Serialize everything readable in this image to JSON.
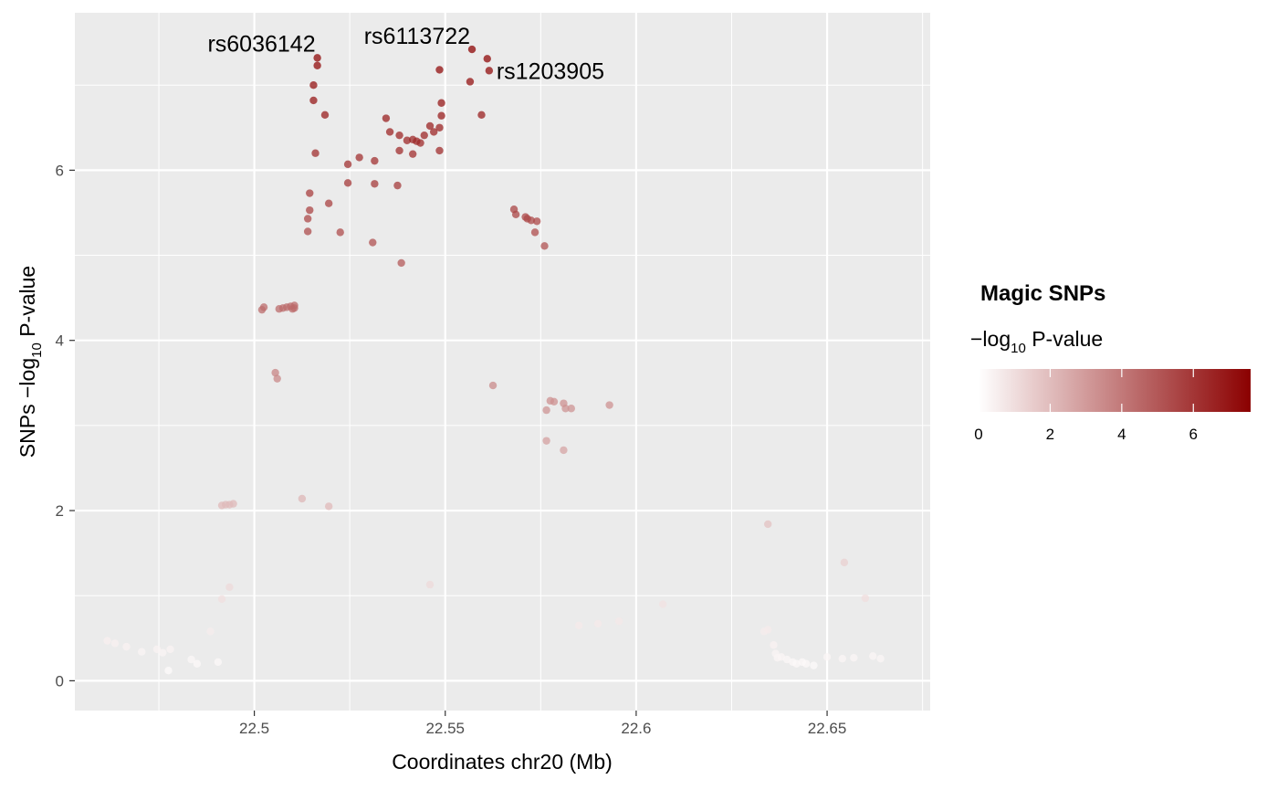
{
  "chart_data": {
    "type": "scatter",
    "xlabel": "Coordinates chr20 (Mb)",
    "ylabel": {
      "prefix": "SNPs −log",
      "sub": "10",
      "suffix": " P-value"
    },
    "xlim": [
      22.453,
      22.677
    ],
    "ylim": [
      -0.35,
      7.85
    ],
    "x_ticks": [
      22.5,
      22.55,
      22.6,
      22.65
    ],
    "x_tick_labels": [
      "22.5",
      "22.55",
      "22.6",
      "22.65"
    ],
    "x_minor_ticks": [
      22.475,
      22.525,
      22.575,
      22.625,
      22.675
    ],
    "y_ticks": [
      0,
      2,
      4,
      6
    ],
    "y_tick_labels": [
      "0",
      "2",
      "4",
      "6"
    ],
    "y_minor_ticks": [
      1,
      3,
      5,
      7
    ],
    "grid": true,
    "panel_background": "#ebebeb",
    "grid_color": "#ffffff",
    "color_scale": {
      "low": "#ffffff",
      "high": "#8b0000",
      "min": 0,
      "max": 7.6
    },
    "legend": {
      "title": "Magic SNPs",
      "subtitle": {
        "prefix": "−log",
        "sub": "10",
        "suffix": " P-value"
      },
      "ticks": [
        0,
        2,
        4,
        6
      ],
      "tick_labels": [
        "0",
        "2",
        "4",
        "6"
      ],
      "position": "right"
    },
    "points": [
      [
        22.5165,
        7.32
      ],
      [
        22.5165,
        7.23
      ],
      [
        22.5155,
        7.0
      ],
      [
        22.5155,
        6.82
      ],
      [
        22.5185,
        6.65
      ],
      [
        22.516,
        6.2
      ],
      [
        22.557,
        7.42
      ],
      [
        22.561,
        7.31
      ],
      [
        22.5615,
        7.17
      ],
      [
        22.5485,
        7.18
      ],
      [
        22.5565,
        7.04
      ],
      [
        22.5595,
        6.65
      ],
      [
        22.549,
        6.79
      ],
      [
        22.549,
        6.64
      ],
      [
        22.5345,
        6.61
      ],
      [
        22.5355,
        6.45
      ],
      [
        22.538,
        6.41
      ],
      [
        22.54,
        6.35
      ],
      [
        22.5415,
        6.36
      ],
      [
        22.5425,
        6.34
      ],
      [
        22.5435,
        6.32
      ],
      [
        22.5445,
        6.41
      ],
      [
        22.546,
        6.52
      ],
      [
        22.547,
        6.45
      ],
      [
        22.5485,
        6.5
      ],
      [
        22.5485,
        6.23
      ],
      [
        22.538,
        6.23
      ],
      [
        22.5415,
        6.19
      ],
      [
        22.5275,
        6.15
      ],
      [
        22.5245,
        6.07
      ],
      [
        22.5315,
        6.11
      ],
      [
        22.5245,
        5.85
      ],
      [
        22.5315,
        5.84
      ],
      [
        22.5375,
        5.82
      ],
      [
        22.5145,
        5.73
      ],
      [
        22.5195,
        5.61
      ],
      [
        22.5145,
        5.53
      ],
      [
        22.514,
        5.43
      ],
      [
        22.514,
        5.28
      ],
      [
        22.5225,
        5.27
      ],
      [
        22.531,
        5.15
      ],
      [
        22.5385,
        4.91
      ],
      [
        22.568,
        5.54
      ],
      [
        22.5685,
        5.48
      ],
      [
        22.571,
        5.45
      ],
      [
        22.5715,
        5.43
      ],
      [
        22.5725,
        5.41
      ],
      [
        22.574,
        5.4
      ],
      [
        22.5735,
        5.27
      ],
      [
        22.576,
        5.11
      ],
      [
        22.502,
        4.36
      ],
      [
        22.5025,
        4.39
      ],
      [
        22.5065,
        4.37
      ],
      [
        22.5075,
        4.38
      ],
      [
        22.5085,
        4.39
      ],
      [
        22.5095,
        4.4
      ],
      [
        22.51,
        4.37
      ],
      [
        22.5105,
        4.41
      ],
      [
        22.5105,
        4.38
      ],
      [
        22.5055,
        3.62
      ],
      [
        22.506,
        3.55
      ],
      [
        22.5625,
        3.47
      ],
      [
        22.5775,
        3.29
      ],
      [
        22.5785,
        3.28
      ],
      [
        22.581,
        3.26
      ],
      [
        22.5765,
        3.18
      ],
      [
        22.5815,
        3.2
      ],
      [
        22.583,
        3.2
      ],
      [
        22.593,
        3.24
      ],
      [
        22.5765,
        2.82
      ],
      [
        22.581,
        2.71
      ],
      [
        22.4915,
        2.06
      ],
      [
        22.4925,
        2.07
      ],
      [
        22.4935,
        2.07
      ],
      [
        22.4945,
        2.08
      ],
      [
        22.5125,
        2.14
      ],
      [
        22.5195,
        2.05
      ],
      [
        22.6345,
        1.84
      ],
      [
        22.6545,
        1.39
      ],
      [
        22.66,
        0.97
      ],
      [
        22.546,
        1.13
      ],
      [
        22.4935,
        1.1
      ],
      [
        22.4915,
        0.96
      ],
      [
        22.4885,
        0.58
      ],
      [
        22.607,
        0.9
      ],
      [
        22.585,
        0.65
      ],
      [
        22.59,
        0.67
      ],
      [
        22.5955,
        0.7
      ],
      [
        22.6335,
        0.58
      ],
      [
        22.6345,
        0.6
      ],
      [
        22.636,
        0.42
      ],
      [
        22.6365,
        0.32
      ],
      [
        22.637,
        0.27
      ],
      [
        22.638,
        0.28
      ],
      [
        22.6395,
        0.25
      ],
      [
        22.641,
        0.22
      ],
      [
        22.642,
        0.2
      ],
      [
        22.6435,
        0.22
      ],
      [
        22.6445,
        0.2
      ],
      [
        22.6465,
        0.18
      ],
      [
        22.65,
        0.28
      ],
      [
        22.654,
        0.26
      ],
      [
        22.657,
        0.27
      ],
      [
        22.662,
        0.29
      ],
      [
        22.664,
        0.26
      ],
      [
        22.4615,
        0.47
      ],
      [
        22.4635,
        0.44
      ],
      [
        22.4665,
        0.4
      ],
      [
        22.4705,
        0.34
      ],
      [
        22.4745,
        0.37
      ],
      [
        22.476,
        0.33
      ],
      [
        22.478,
        0.37
      ],
      [
        22.4835,
        0.25
      ],
      [
        22.485,
        0.2
      ],
      [
        22.4905,
        0.22
      ],
      [
        22.4775,
        0.12
      ]
    ],
    "annotations": [
      {
        "text": "rs6036142",
        "x": 22.5165,
        "y": 7.32
      },
      {
        "text": "rs6113722",
        "x": 22.557,
        "y": 7.42
      },
      {
        "text": "rs1203905",
        "x": 22.5615,
        "y": 7.17
      }
    ]
  }
}
